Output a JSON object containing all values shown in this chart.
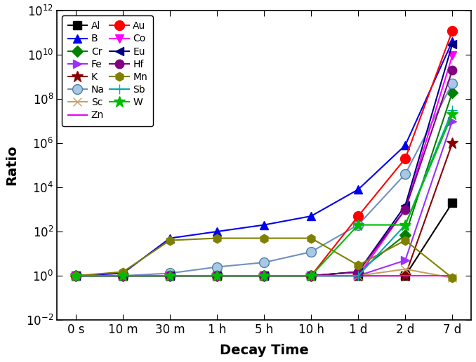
{
  "x_labels": [
    "0 s",
    "10 m",
    "30 m",
    "1 h",
    "5 h",
    "10 h",
    "1 d",
    "2 d",
    "7 d"
  ],
  "xlabel": "Decay Time",
  "ylabel": "Ratio",
  "series": {
    "Al": {
      "color": "#000000",
      "marker": "s",
      "markersize": 8,
      "values": [
        1.0,
        1.0,
        1.0,
        1.0,
        1.0,
        1.0,
        1.0,
        1.0,
        2000.0
      ]
    },
    "B": {
      "color": "#0000EE",
      "marker": "^",
      "markersize": 9,
      "values": [
        1.0,
        1.3,
        50.0,
        100.0,
        200.0,
        500.0,
        8000.0,
        800000.0,
        40000000000.0
      ]
    },
    "Cr": {
      "color": "#008000",
      "marker": "D",
      "markersize": 8,
      "values": [
        1.0,
        1.0,
        1.0,
        1.0,
        1.0,
        1.0,
        1.5,
        70.0,
        200000000.0
      ]
    },
    "Fe": {
      "color": "#9B30FF",
      "marker": ">",
      "markersize": 9,
      "values": [
        1.0,
        1.0,
        1.0,
        1.0,
        1.0,
        1.0,
        1.0,
        5.0,
        10000000.0
      ]
    },
    "K": {
      "color": "#8B0000",
      "marker": "*",
      "markersize": 12,
      "values": [
        1.0,
        1.0,
        1.0,
        1.0,
        1.0,
        1.0,
        1.0,
        1.0,
        1000000.0
      ]
    },
    "Na": {
      "color": "#7090C0",
      "marker": "o",
      "markersize": 10,
      "values": [
        1.0,
        1.0,
        1.3,
        2.5,
        4.0,
        12.0,
        200.0,
        40000.0,
        500000000.0
      ]
    },
    "Sc": {
      "color": "#C8A060",
      "marker": "x",
      "markersize": 9,
      "values": [
        1.0,
        1.0,
        1.0,
        1.0,
        1.0,
        1.0,
        1.0,
        2.0,
        0.8
      ]
    },
    "Zn": {
      "color": "#EE00EE",
      "marker": "None",
      "markersize": 0,
      "values": [
        1.0,
        1.0,
        1.0,
        1.0,
        1.0,
        1.0,
        1.0,
        1.0,
        1.0
      ]
    },
    "Au": {
      "color": "#FF0000",
      "marker": "o",
      "markersize": 10,
      "values": [
        1.0,
        1.0,
        1.0,
        1.0,
        1.0,
        1.0,
        500.0,
        200000.0,
        120000000000.0
      ]
    },
    "Co": {
      "color": "#FF00FF",
      "marker": "v",
      "markersize": 9,
      "values": [
        1.0,
        1.0,
        1.0,
        1.0,
        1.0,
        1.0,
        1.0,
        1000.0,
        9000000000.0
      ]
    },
    "Eu": {
      "color": "#000080",
      "marker": "<",
      "markersize": 9,
      "values": [
        1.0,
        1.0,
        1.0,
        1.0,
        1.0,
        1.0,
        1.5,
        1500.0,
        30000000000.0
      ]
    },
    "Hf": {
      "color": "#800080",
      "marker": "o",
      "markersize": 9,
      "values": [
        1.0,
        1.0,
        1.0,
        1.0,
        1.0,
        1.0,
        1.5,
        1000.0,
        2000000000.0
      ]
    },
    "Mn": {
      "color": "#808000",
      "marker": "h",
      "markersize": 9,
      "values": [
        1.0,
        1.5,
        40.0,
        50.0,
        50.0,
        50.0,
        3.0,
        40.0,
        0.8
      ]
    },
    "Sb": {
      "color": "#00AAAA",
      "marker": "+",
      "markersize": 10,
      "values": [
        1.0,
        1.0,
        1.0,
        1.0,
        1.0,
        1.0,
        1.0,
        200.0,
        30000000.0
      ]
    },
    "W": {
      "color": "#00BB00",
      "marker": "*",
      "markersize": 12,
      "values": [
        1.0,
        1.0,
        1.0,
        1.0,
        1.0,
        1.0,
        200.0,
        200.0,
        20000000.0
      ]
    }
  }
}
